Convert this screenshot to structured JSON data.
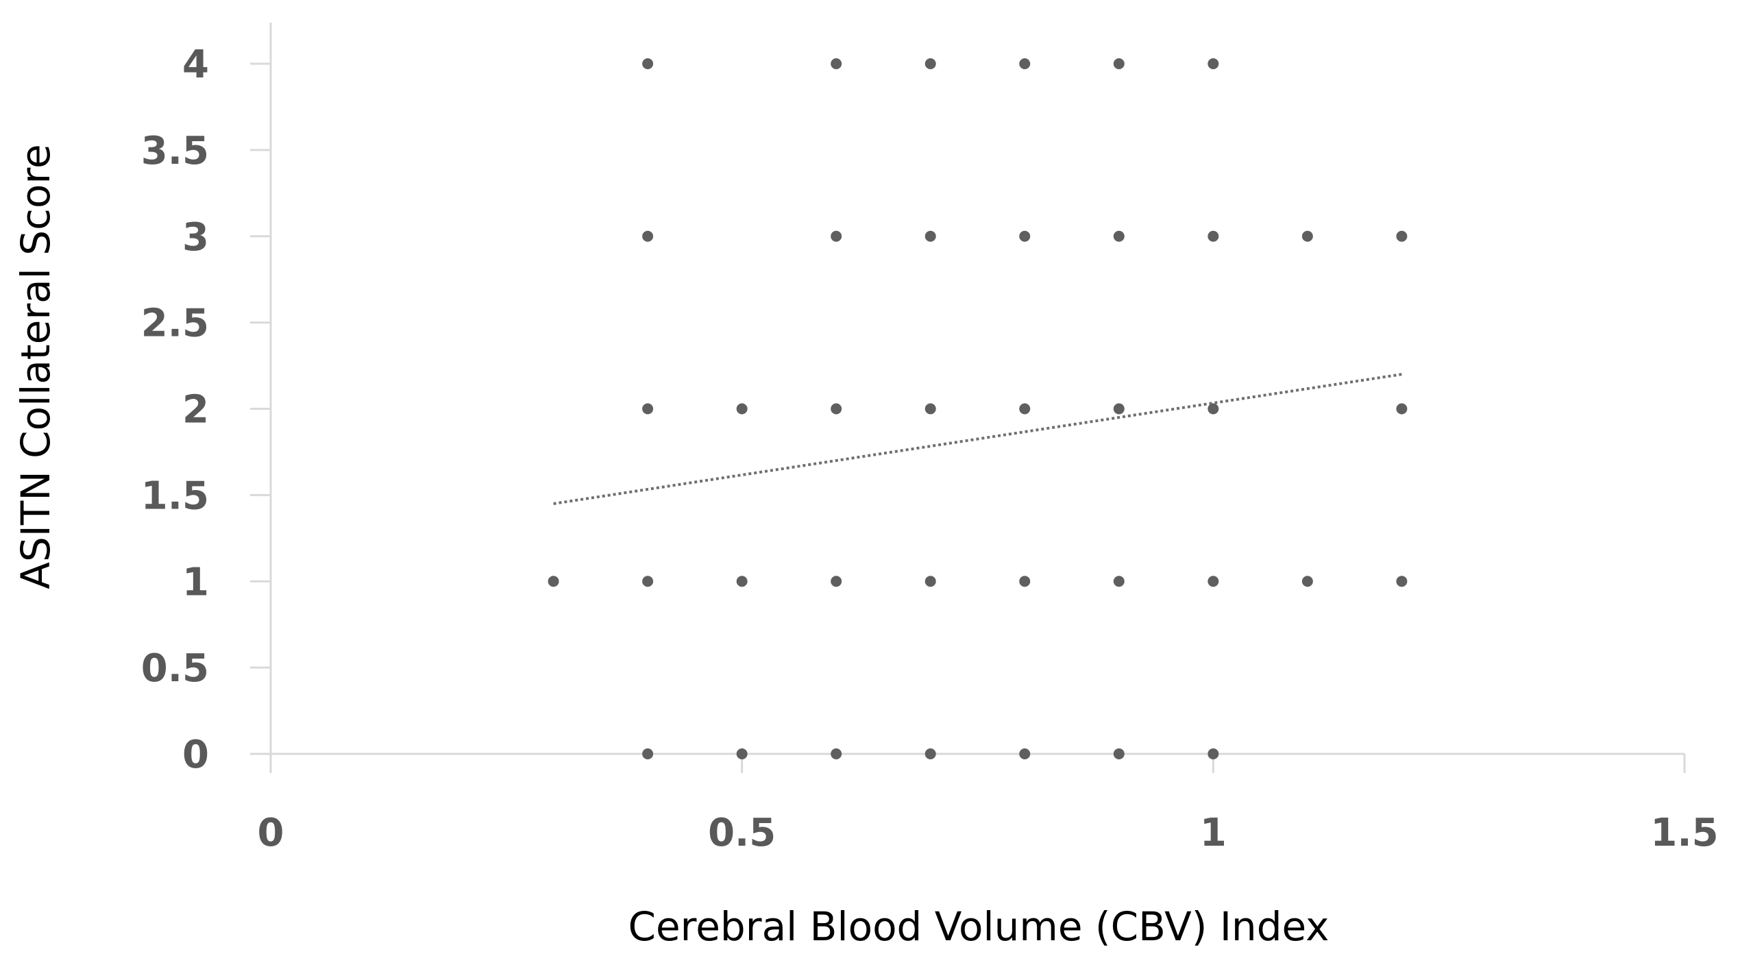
{
  "chart_data": {
    "type": "scatter",
    "title": "",
    "xlabel": "Cerebral Blood Volume (CBV) Index",
    "ylabel": "ASITN Collateral Score",
    "xlim": [
      0,
      1.5
    ],
    "ylim": [
      0,
      4
    ],
    "x_ticks": [
      "0",
      "0.5",
      "1",
      "1.5"
    ],
    "y_ticks": [
      "0",
      "0.5",
      "1",
      "1.5",
      "2",
      "2.5",
      "3",
      "3.5",
      "4"
    ],
    "grid": false,
    "legend": "none",
    "series": [
      {
        "points": [
          {
            "x": 0.4,
            "y": 4
          },
          {
            "x": 0.6,
            "y": 4
          },
          {
            "x": 0.7,
            "y": 4
          },
          {
            "x": 0.8,
            "y": 4
          },
          {
            "x": 0.9,
            "y": 4
          },
          {
            "x": 1.0,
            "y": 4
          },
          {
            "x": 0.4,
            "y": 3
          },
          {
            "x": 0.6,
            "y": 3
          },
          {
            "x": 0.7,
            "y": 3
          },
          {
            "x": 0.8,
            "y": 3
          },
          {
            "x": 0.9,
            "y": 3
          },
          {
            "x": 1.0,
            "y": 3
          },
          {
            "x": 1.1,
            "y": 3
          },
          {
            "x": 1.2,
            "y": 3
          },
          {
            "x": 0.4,
            "y": 2
          },
          {
            "x": 0.5,
            "y": 2
          },
          {
            "x": 0.6,
            "y": 2
          },
          {
            "x": 0.7,
            "y": 2
          },
          {
            "x": 0.8,
            "y": 2
          },
          {
            "x": 0.9,
            "y": 2
          },
          {
            "x": 1.0,
            "y": 2
          },
          {
            "x": 1.2,
            "y": 2
          },
          {
            "x": 0.3,
            "y": 1
          },
          {
            "x": 0.4,
            "y": 1
          },
          {
            "x": 0.5,
            "y": 1
          },
          {
            "x": 0.6,
            "y": 1
          },
          {
            "x": 0.7,
            "y": 1
          },
          {
            "x": 0.8,
            "y": 1
          },
          {
            "x": 0.9,
            "y": 1
          },
          {
            "x": 1.0,
            "y": 1
          },
          {
            "x": 1.1,
            "y": 1
          },
          {
            "x": 1.2,
            "y": 1
          },
          {
            "x": 0.4,
            "y": 0
          },
          {
            "x": 0.5,
            "y": 0
          },
          {
            "x": 0.6,
            "y": 0
          },
          {
            "x": 0.7,
            "y": 0
          },
          {
            "x": 0.8,
            "y": 0
          },
          {
            "x": 0.9,
            "y": 0
          },
          {
            "x": 1.0,
            "y": 0
          }
        ]
      }
    ],
    "trendline": {
      "type": "linear",
      "style": "dotted",
      "start": {
        "x": 0.3,
        "y": 1.45
      },
      "end": {
        "x": 1.2,
        "y": 2.2
      }
    },
    "colors": {
      "marker": "#5f5f5f",
      "tick_label": "#595959",
      "axis_line": "#d9d9d9",
      "trendline": "#6e6e6e",
      "axis_title": "#000000"
    }
  }
}
